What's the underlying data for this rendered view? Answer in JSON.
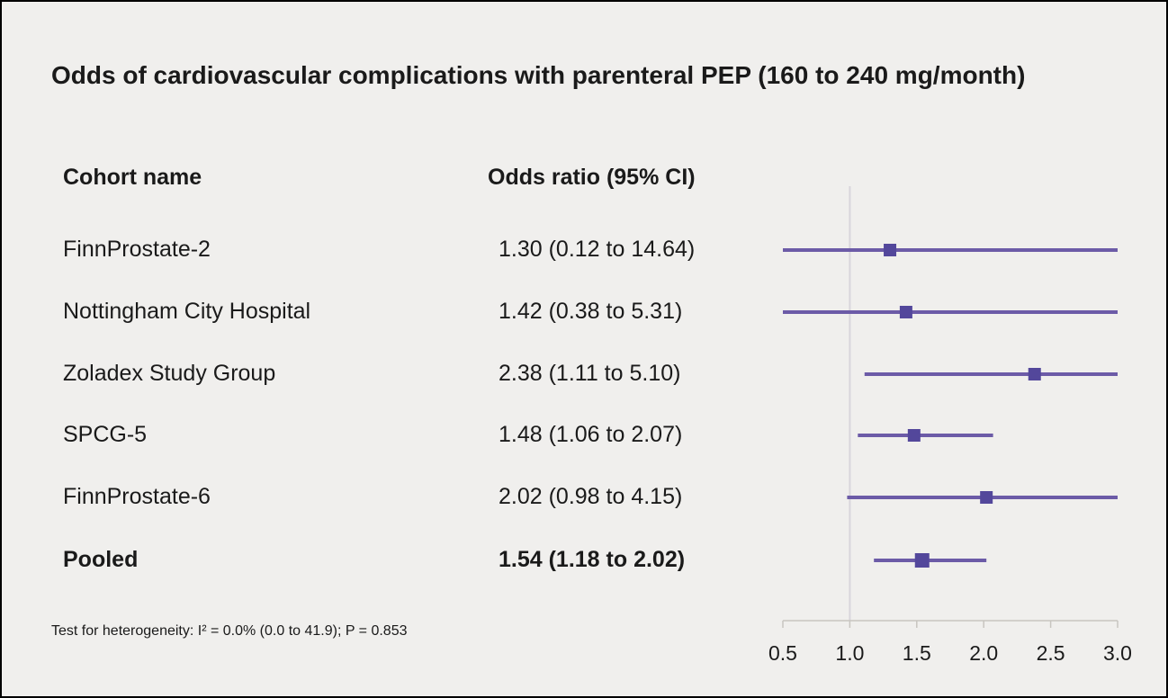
{
  "colors": {
    "background": "#f0efed",
    "text": "#1a1a1a",
    "accent_line": "#6c5ba7",
    "marker": "#53479b",
    "reference_line": "#d8d5db",
    "axis": "#c8c5c0"
  },
  "chart_data": {
    "type": "forest",
    "title": "Odds of cardiovascular complications with parenteral PEP (160 to 240 mg/month)",
    "columns": [
      "Cohort name",
      "Odds ratio (95% CI)"
    ],
    "x_axis": {
      "scale": "linear",
      "range": [
        0.5,
        3.0
      ],
      "ticks": [
        "0.5",
        "1.0",
        "1.5",
        "2.0",
        "2.5",
        "3.0"
      ],
      "reference_line": 1.0
    },
    "studies": [
      {
        "name": "FinnProstate-2",
        "label": "1.30 (0.12 to 14.64)",
        "or": 1.3,
        "ci_low": 0.12,
        "ci_high": 14.64,
        "pooled": false
      },
      {
        "name": "Nottingham City Hospital",
        "label": "1.42 (0.38 to 5.31)",
        "or": 1.42,
        "ci_low": 0.38,
        "ci_high": 5.31,
        "pooled": false
      },
      {
        "name": "Zoladex Study Group",
        "label": "2.38 (1.11 to 5.10)",
        "or": 2.38,
        "ci_low": 1.11,
        "ci_high": 5.1,
        "pooled": false
      },
      {
        "name": "SPCG-5",
        "label": "1.48 (1.06 to 2.07)",
        "or": 1.48,
        "ci_low": 1.06,
        "ci_high": 2.07,
        "pooled": false
      },
      {
        "name": "FinnProstate-6",
        "label": "2.02 (0.98 to 4.15)",
        "or": 2.02,
        "ci_low": 0.98,
        "ci_high": 4.15,
        "pooled": false
      },
      {
        "name": "Pooled",
        "label": "1.54 (1.18 to 2.02)",
        "or": 1.54,
        "ci_low": 1.18,
        "ci_high": 2.02,
        "pooled": true
      }
    ],
    "heterogeneity": "Test for heterogeneity: I² = 0.0% (0.0 to 41.9); P = 0.853"
  }
}
